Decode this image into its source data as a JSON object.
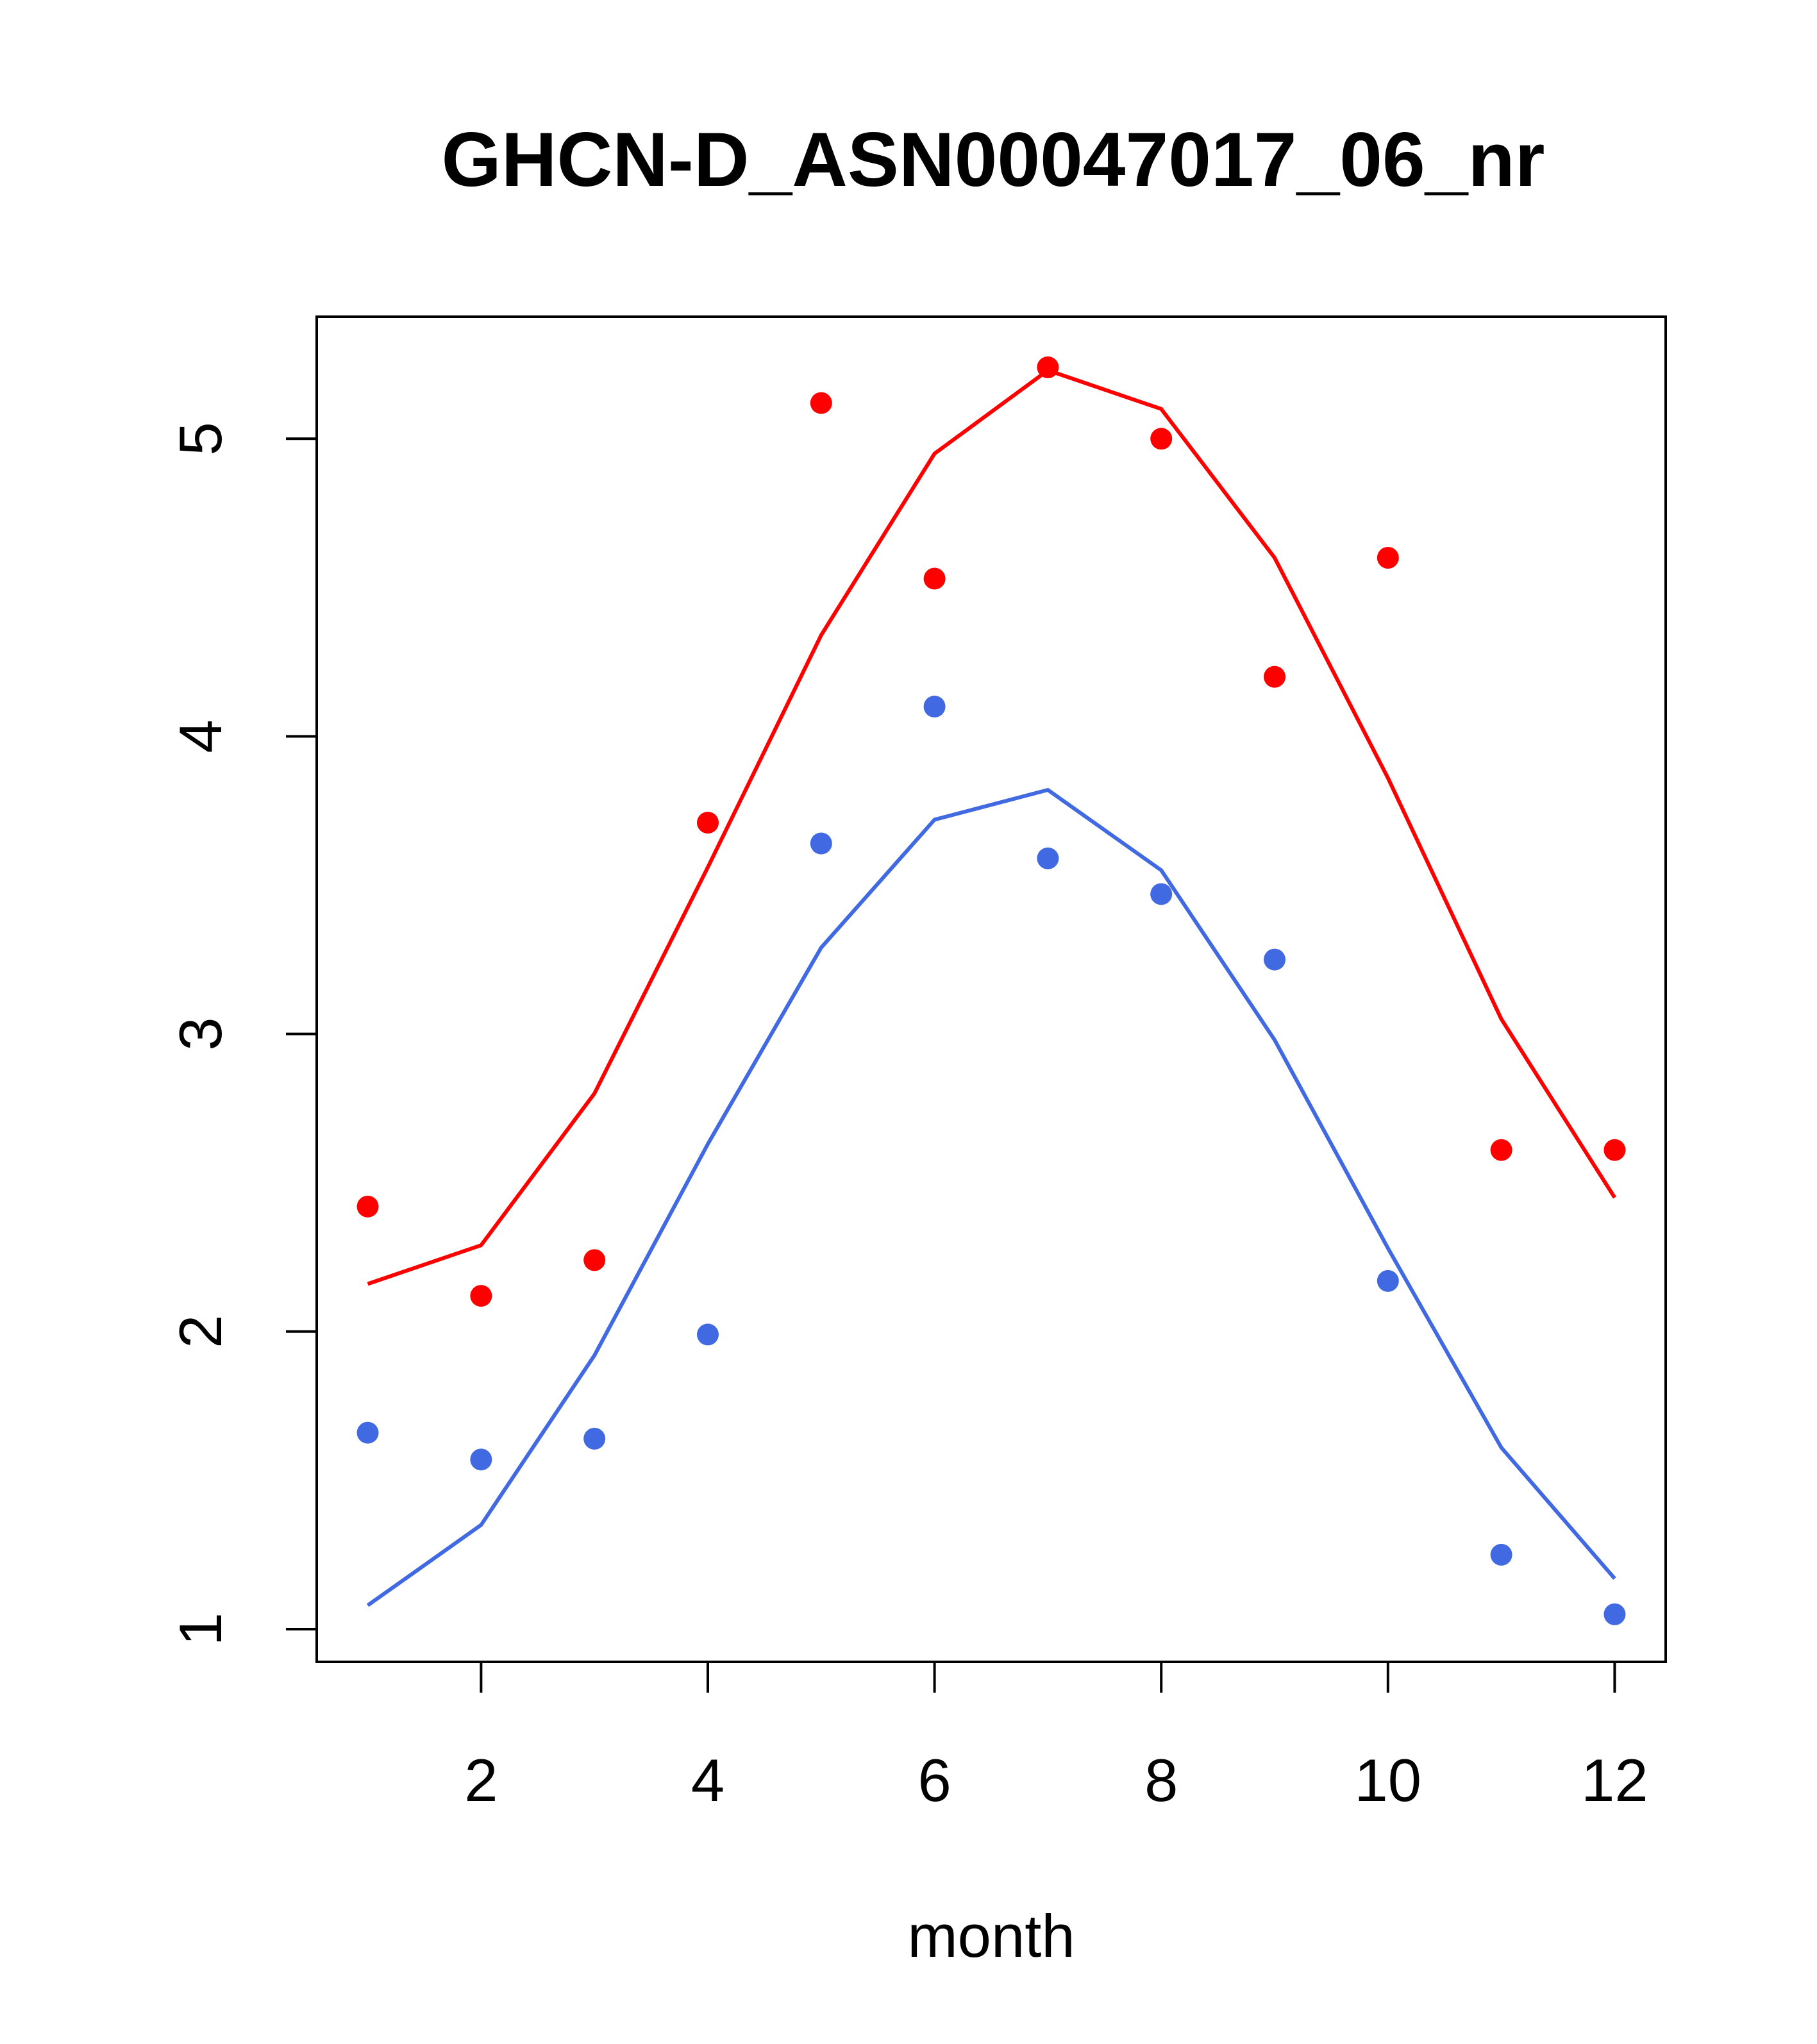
{
  "chart_data": {
    "type": "scatter",
    "title": "GHCN-D_ASN00047017_06_nr",
    "xlabel": "month",
    "ylabel": "",
    "xlim": [
      0.55,
      12.45
    ],
    "ylim": [
      0.89,
      5.41
    ],
    "x_ticks": [
      2,
      4,
      6,
      8,
      10,
      12
    ],
    "y_ticks": [
      1,
      2,
      3,
      4,
      5
    ],
    "grid": false,
    "series": [
      {
        "color": "#ff0000",
        "points_x": [
          1,
          2,
          3,
          4,
          5,
          6,
          7,
          8,
          9,
          10,
          11,
          12
        ],
        "points_y": [
          2.42,
          2.12,
          2.24,
          3.71,
          5.12,
          4.53,
          5.24,
          5.0,
          4.2,
          4.6,
          2.61,
          2.61
        ],
        "line_x": [
          1,
          2,
          3,
          4,
          5,
          6,
          7,
          8,
          9,
          10,
          11,
          12
        ],
        "line_y": [
          2.16,
          2.29,
          2.8,
          3.56,
          4.34,
          4.95,
          5.23,
          5.1,
          4.6,
          3.86,
          3.05,
          2.45
        ]
      },
      {
        "color": "#4169e1",
        "points_x": [
          1,
          2,
          3,
          4,
          5,
          6,
          7,
          8,
          9,
          10,
          11,
          12
        ],
        "points_y": [
          1.66,
          1.57,
          1.64,
          1.99,
          3.64,
          4.1,
          3.59,
          3.47,
          3.25,
          2.17,
          1.25,
          1.05
        ],
        "line_x": [
          1,
          2,
          3,
          4,
          5,
          6,
          7,
          8,
          9,
          10,
          11,
          12
        ],
        "line_y": [
          1.08,
          1.35,
          1.92,
          2.63,
          3.29,
          3.72,
          3.82,
          3.55,
          2.98,
          2.28,
          1.61,
          1.17
        ]
      }
    ]
  }
}
